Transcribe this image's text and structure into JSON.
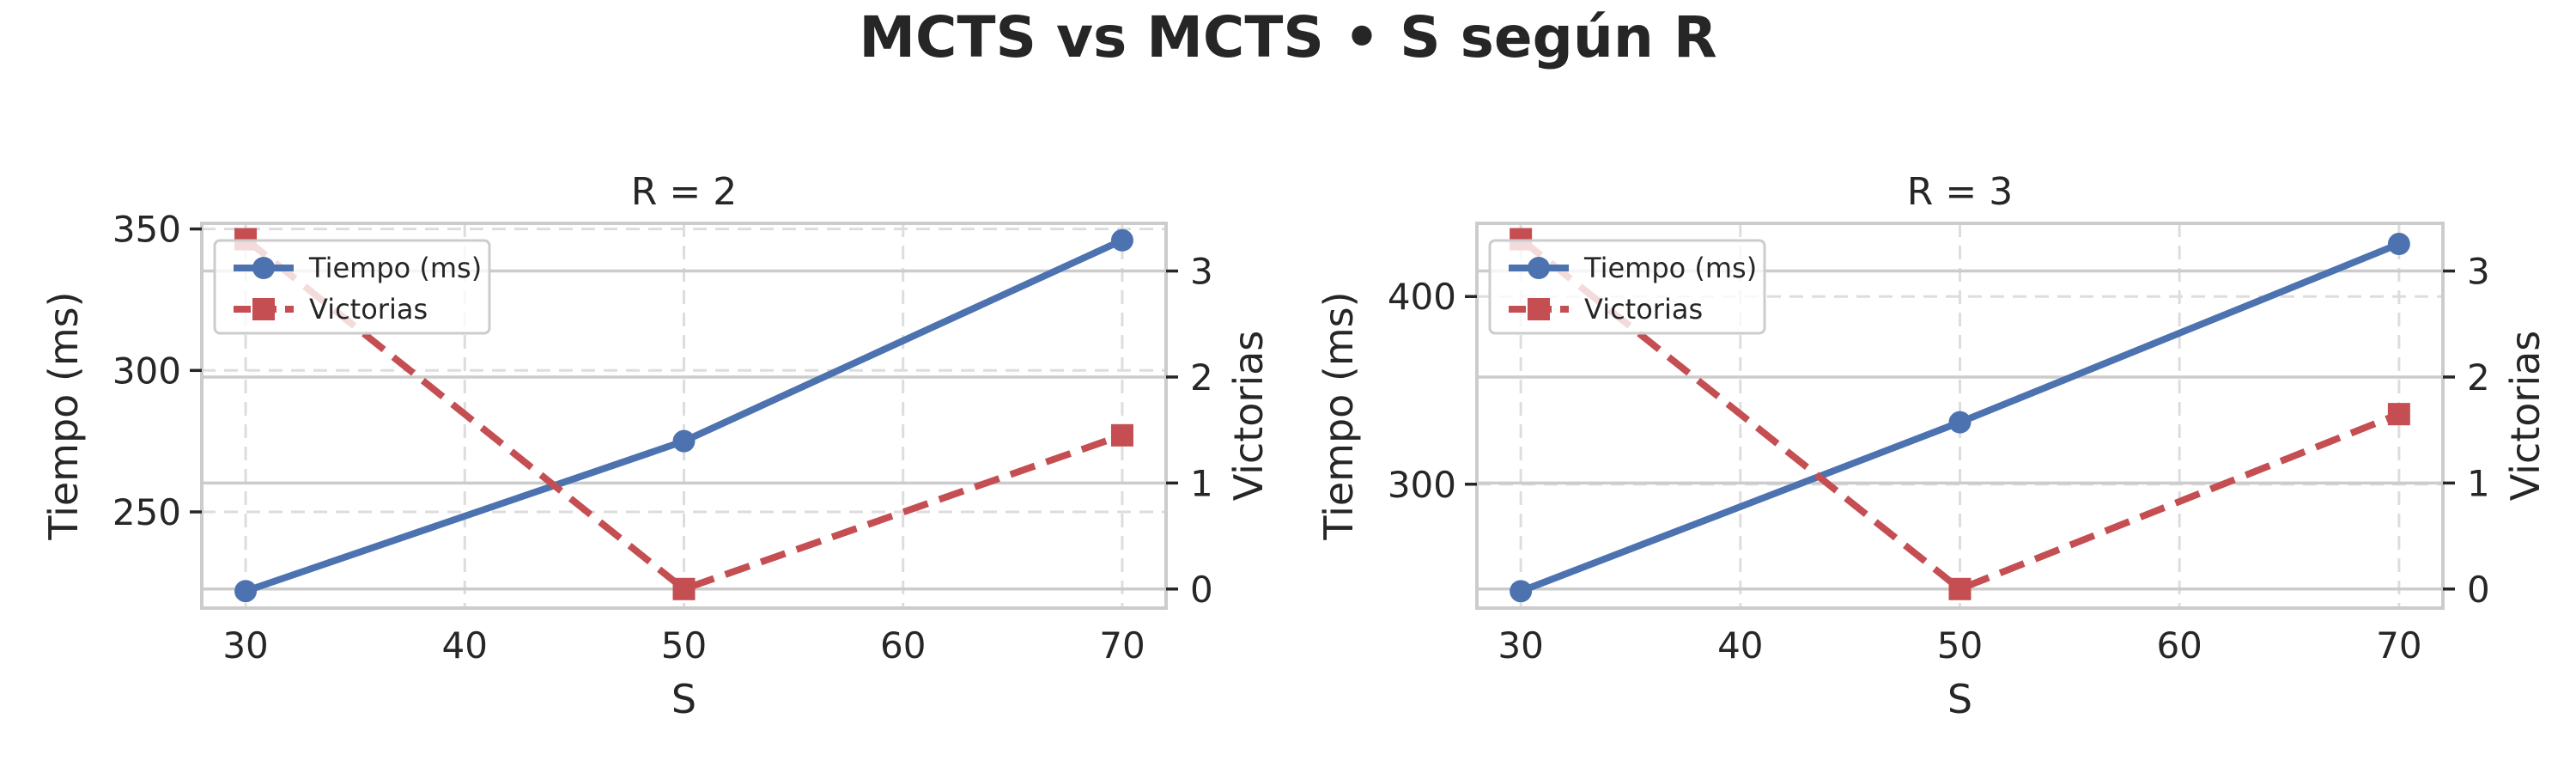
{
  "figure": {
    "title": "MCTS vs MCTS • S según R"
  },
  "chart_data": [
    {
      "type": "line",
      "title": "R = 2",
      "xlabel": "S",
      "ylabel": "Tiempo (ms)",
      "y2label": "Victorias",
      "x": [
        30,
        50,
        70
      ],
      "xlim": [
        28,
        72
      ],
      "xticks": [
        30,
        40,
        50,
        60,
        70
      ],
      "ylim": [
        216,
        352
      ],
      "yticks": [
        250,
        300,
        350
      ],
      "y2lim": [
        -0.18,
        3.45
      ],
      "y2ticks": [
        0,
        1,
        2,
        3
      ],
      "grid": true,
      "legend": {
        "placement": "upper-left",
        "entries": [
          "Tiempo (ms)",
          "Victorias"
        ]
      },
      "series": [
        {
          "name": "Tiempo (ms)",
          "axis": "left",
          "values": [
            222,
            275,
            346
          ],
          "color": "#4c72b0",
          "style": "solid",
          "marker": "circle"
        },
        {
          "name": "Victorias",
          "axis": "right",
          "values": [
            3.3,
            0,
            1.45
          ],
          "color": "#c44e52",
          "style": "dashed",
          "marker": "square"
        }
      ]
    },
    {
      "type": "line",
      "title": "R = 3",
      "xlabel": "S",
      "ylabel": "Tiempo (ms)",
      "y2label": "Victorias",
      "x": [
        30,
        50,
        70
      ],
      "xlim": [
        28,
        72
      ],
      "xticks": [
        30,
        40,
        50,
        60,
        70
      ],
      "ylim": [
        234,
        439
      ],
      "yticks": [
        300,
        400
      ],
      "y2lim": [
        -0.18,
        3.45
      ],
      "y2ticks": [
        0,
        1,
        2,
        3
      ],
      "grid": true,
      "legend": {
        "placement": "upper-left",
        "entries": [
          "Tiempo (ms)",
          "Victorias"
        ]
      },
      "series": [
        {
          "name": "Tiempo (ms)",
          "axis": "left",
          "values": [
            243,
            333,
            428
          ],
          "color": "#4c72b0",
          "style": "solid",
          "marker": "circle"
        },
        {
          "name": "Victorias",
          "axis": "right",
          "values": [
            3.3,
            0,
            1.65
          ],
          "color": "#c44e52",
          "style": "dashed",
          "marker": "square"
        }
      ]
    }
  ]
}
